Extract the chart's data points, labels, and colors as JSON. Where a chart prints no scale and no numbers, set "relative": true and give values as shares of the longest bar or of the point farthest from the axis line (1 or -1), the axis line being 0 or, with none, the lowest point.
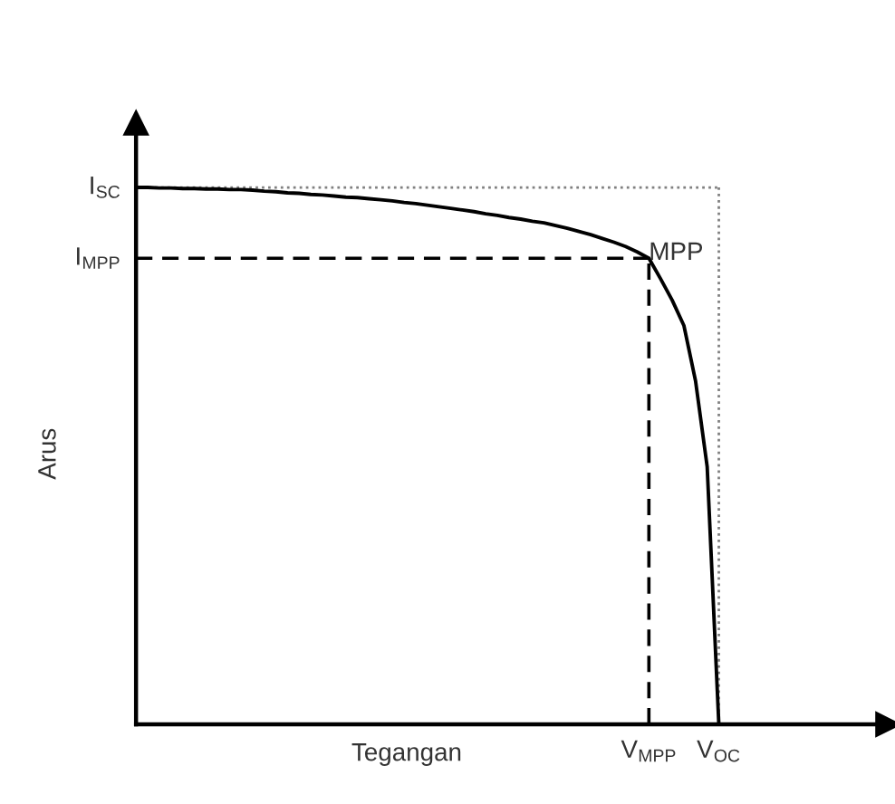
{
  "chart_data": {
    "type": "line",
    "relative": true,
    "xlabel": "Tegangan",
    "ylabel": "Arus",
    "categories": [
      null,
      null,
      null,
      null,
      null,
      null,
      null,
      null,
      null,
      null,
      null,
      null,
      null,
      null,
      null,
      null,
      null,
      null,
      null,
      null,
      null,
      null,
      null,
      null,
      null,
      null,
      null,
      null,
      null,
      null,
      null,
      null,
      null,
      null,
      null,
      null,
      null,
      null,
      null,
      null,
      null,
      null,
      null,
      null,
      "V$_{MPP}$",
      null,
      null,
      null,
      null,
      null,
      "V$_{OC}$"
    ],
    "series": [
      {
        "color": "#000000",
        "values": [
          1.0,
          1.0,
          0.999,
          0.999,
          0.998,
          0.998,
          0.997,
          0.997,
          0.996,
          0.996,
          0.995,
          0.993,
          0.992,
          0.99,
          0.989,
          0.987,
          0.986,
          0.984,
          0.982,
          0.981,
          0.979,
          0.977,
          0.975,
          0.972,
          0.97,
          0.967,
          0.964,
          0.961,
          0.958,
          0.955,
          0.951,
          0.948,
          0.944,
          0.941,
          0.937,
          0.934,
          0.929,
          0.924,
          0.918,
          0.912,
          0.905,
          0.898,
          0.89,
          0.88,
          0.868,
          0.83,
          0.79,
          0.743,
          0.64,
          0.48,
          0
        ]
      }
    ],
    "ref_lines": [
      {
        "axis": "y",
        "value": 1.0,
        "label": "I$_{SC}$",
        "line_style": "dotted",
        "color": "#808080"
      },
      {
        "axis": "y",
        "value": 0.868,
        "label": "I$_{MPP}$",
        "line_style": "dashed",
        "color": "#000000"
      },
      {
        "axis": "x",
        "value": "V$_{MPP}$",
        "line_style": "dashed",
        "color": "#000000"
      },
      {
        "axis": "x",
        "value": "V$_{OC}$",
        "line_style": "dotted",
        "color": "#808080"
      }
    ],
    "annotations": [
      {
        "text": "MPP",
        "x": "V$_{MPP}$",
        "y": 0.868
      }
    ],
    "marker": "none",
    "line_style": "solid"
  }
}
